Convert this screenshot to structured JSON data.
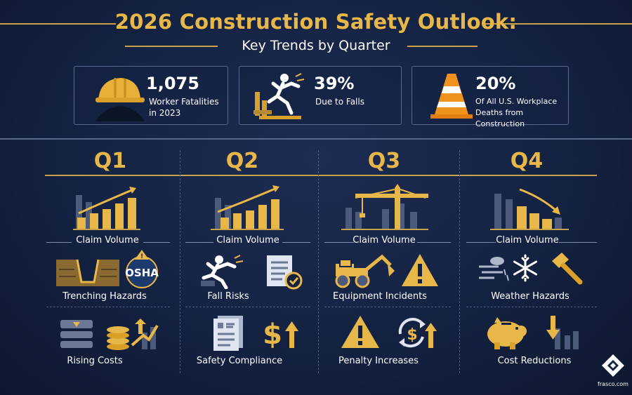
{
  "title": "2026 Construction Safety Outlook:",
  "subtitle": "Key Trends by Quarter",
  "stats": [
    {
      "value": "1,075",
      "label": "Worker Fatalities\nin 2023",
      "icon": "hard-hat-icon"
    },
    {
      "value": "39%",
      "label": "Due to Falls",
      "icon": "falling-worker-icon"
    },
    {
      "value": "20%",
      "label": "Of All U.S. Workplace\nDeaths from Construction",
      "icon": "traffic-cone-icon"
    }
  ],
  "quarters": [
    {
      "name": "Q1",
      "claim_label": "Claim Volume",
      "claim_trend": "rising",
      "item1_label": "Trenching Hazards",
      "osha_text": "OSHA",
      "item2_label": "Rising Costs"
    },
    {
      "name": "Q2",
      "claim_label": "Claim Volume",
      "claim_trend": "rising",
      "item1_label": "Fall Risks",
      "item2_label": "Safety Compliance"
    },
    {
      "name": "Q3",
      "claim_label": "Claim Volume",
      "claim_trend": "crane",
      "item1_label": "Equipment Incidents",
      "item2_label": "Penalty Increases"
    },
    {
      "name": "Q4",
      "claim_label": "Claim Volume",
      "claim_trend": "falling",
      "item1_label": "Weather Hazards",
      "item2_label": "Cost Reductions"
    }
  ],
  "brand": "frasco.com",
  "colors": {
    "gold": "#e8b74a",
    "navy": "#142242",
    "slate": "#55698f"
  }
}
